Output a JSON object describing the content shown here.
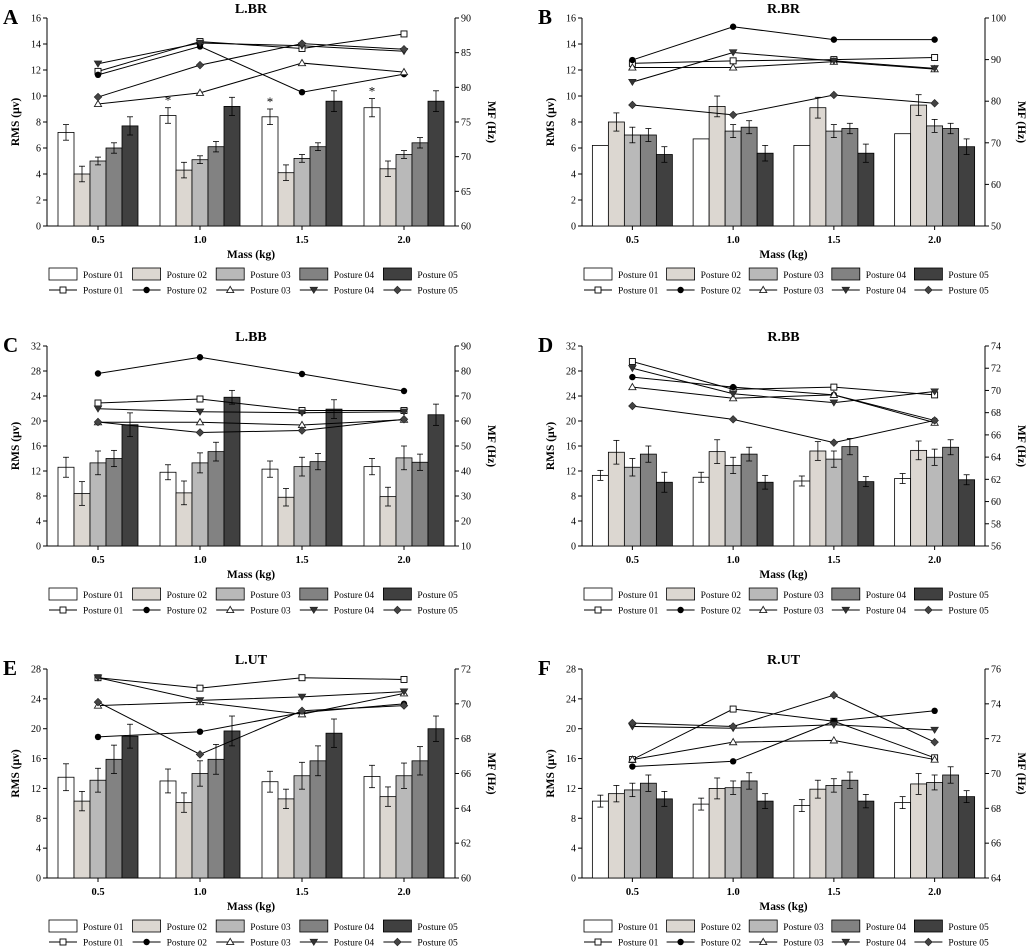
{
  "figure": {
    "legend_bar_labels": [
      "Posture 01",
      "Posture 02",
      "Posture 03",
      "Posture 04",
      "Posture 05"
    ],
    "legend_line_labels": [
      "Posture 01",
      "Posture 02",
      "Posture 03",
      "Posture 04",
      "Posture 05"
    ],
    "bar_colors": [
      "#ffffff",
      "#dcd7d1",
      "#b9b9b9",
      "#828282",
      "#404040"
    ],
    "line_markers": [
      "square-open",
      "circle-filled",
      "triangle-up-open",
      "triangle-down-filled",
      "diamond-filled"
    ]
  },
  "chart_data": [
    {
      "panel": "A",
      "type": "bar",
      "title": "L.BR",
      "xlabel": "Mass (kg)",
      "ylabel": "RMS (μv)",
      "y2label": "MF (Hz)",
      "categories": [
        "0.5",
        "1.0",
        "1.5",
        "2.0"
      ],
      "ylim": [
        0,
        16
      ],
      "yticks": [
        "0",
        "2",
        "4",
        "6",
        "8",
        "10",
        "12",
        "14",
        "16"
      ],
      "y2lim": [
        60,
        90
      ],
      "y2ticks": [
        "60",
        "65",
        "70",
        "75",
        "80",
        "85",
        "90"
      ],
      "bar_series": [
        {
          "name": "Posture 01",
          "values": [
            7.2,
            8.5,
            8.4,
            9.1
          ],
          "errors": [
            0.6,
            0.6,
            0.6,
            0.7
          ]
        },
        {
          "name": "Posture 02",
          "values": [
            4.0,
            4.3,
            4.1,
            4.4
          ],
          "errors": [
            0.6,
            0.6,
            0.6,
            0.6
          ]
        },
        {
          "name": "Posture 03",
          "values": [
            5.0,
            5.1,
            5.2,
            5.5
          ],
          "errors": [
            0.3,
            0.3,
            0.3,
            0.3
          ]
        },
        {
          "name": "Posture 04",
          "values": [
            6.0,
            6.1,
            6.1,
            6.4
          ],
          "errors": [
            0.4,
            0.4,
            0.3,
            0.4
          ]
        },
        {
          "name": "Posture 05",
          "values": [
            7.7,
            9.2,
            9.6,
            9.6
          ],
          "errors": [
            0.7,
            0.7,
            0.8,
            0.8
          ]
        }
      ],
      "line_series": [
        {
          "name": "Posture 01",
          "values": [
            82.3,
            86.6,
            85.6,
            87.7
          ]
        },
        {
          "name": "Posture 02",
          "values": [
            81.8,
            85.9,
            79.3,
            81.9
          ]
        },
        {
          "name": "Posture 03",
          "values": [
            77.6,
            79.2,
            83.5,
            82.2
          ]
        },
        {
          "name": "Posture 04",
          "values": [
            83.4,
            86.4,
            86.0,
            85.2
          ]
        },
        {
          "name": "Posture 05",
          "values": [
            78.6,
            83.2,
            86.3,
            85.5
          ]
        }
      ],
      "annotations": [
        {
          "category": "1.0",
          "text": "*"
        },
        {
          "category": "1.5",
          "text": "*"
        },
        {
          "category": "2.0",
          "text": "*"
        }
      ]
    },
    {
      "panel": "B",
      "type": "bar",
      "title": "R.BR",
      "xlabel": "Mass (kg)",
      "ylabel": "RMS (μv)",
      "y2label": "MF (Hz)",
      "categories": [
        "0.5",
        "1.0",
        "1.5",
        "2.0"
      ],
      "ylim": [
        0,
        16
      ],
      "yticks": [
        "0",
        "2",
        "4",
        "6",
        "8",
        "10",
        "12",
        "14",
        "16"
      ],
      "y2lim": [
        50,
        100
      ],
      "y2ticks": [
        "50",
        "60",
        "70",
        "80",
        "90",
        "100"
      ],
      "bar_series": [
        {
          "name": "Posture 01",
          "values": [
            6.2,
            6.7,
            6.2,
            7.1
          ],
          "errors": [
            0,
            0,
            0,
            0
          ]
        },
        {
          "name": "Posture 02",
          "values": [
            8.0,
            9.2,
            9.1,
            9.3
          ],
          "errors": [
            0.7,
            0.8,
            0.8,
            0.8
          ]
        },
        {
          "name": "Posture 03",
          "values": [
            7.0,
            7.3,
            7.3,
            7.7
          ],
          "errors": [
            0.6,
            0.5,
            0.5,
            0.5
          ]
        },
        {
          "name": "Posture 04",
          "values": [
            7.0,
            7.6,
            7.5,
            7.5
          ],
          "errors": [
            0.5,
            0.5,
            0.4,
            0.4
          ]
        },
        {
          "name": "Posture 05",
          "values": [
            5.5,
            5.6,
            5.6,
            6.1
          ],
          "errors": [
            0.6,
            0.6,
            0.7,
            0.6
          ]
        }
      ],
      "line_series": [
        {
          "name": "Posture 01",
          "values": [
            89.1,
            89.7,
            90.0,
            90.5
          ]
        },
        {
          "name": "Posture 02",
          "values": [
            89.9,
            97.9,
            94.8,
            94.8
          ]
        },
        {
          "name": "Posture 03",
          "values": [
            88.1,
            88.1,
            89.5,
            87.7
          ]
        },
        {
          "name": "Posture 04",
          "values": [
            84.6,
            91.7,
            89.7,
            87.9
          ]
        },
        {
          "name": "Posture 05",
          "values": [
            79.1,
            76.7,
            81.5,
            79.5
          ]
        }
      ],
      "annotations": []
    },
    {
      "panel": "C",
      "type": "bar",
      "title": "L.BB",
      "xlabel": "Mass (kg)",
      "ylabel": "RMS (μv)",
      "y2label": "MF (Hz)",
      "categories": [
        "0.5",
        "1.0",
        "1.5",
        "2.0"
      ],
      "ylim": [
        0,
        32
      ],
      "yticks": [
        "0",
        "4",
        "8",
        "12",
        "16",
        "20",
        "24",
        "28",
        "32"
      ],
      "y2lim": [
        10,
        90
      ],
      "y2ticks": [
        "10",
        "20",
        "30",
        "40",
        "50",
        "60",
        "70",
        "80",
        "90"
      ],
      "bar_series": [
        {
          "name": "Posture 01",
          "values": [
            12.6,
            11.8,
            12.3,
            12.7
          ],
          "errors": [
            1.6,
            1.2,
            1.3,
            1.3
          ]
        },
        {
          "name": "Posture 02",
          "values": [
            8.4,
            8.5,
            7.8,
            7.9
          ],
          "errors": [
            1.9,
            1.9,
            1.4,
            1.5
          ]
        },
        {
          "name": "Posture 03",
          "values": [
            13.3,
            13.3,
            12.7,
            14.1
          ],
          "errors": [
            1.9,
            1.6,
            1.5,
            1.9
          ]
        },
        {
          "name": "Posture 04",
          "values": [
            14.0,
            15.1,
            13.5,
            13.4
          ],
          "errors": [
            1.3,
            1.5,
            1.3,
            1.3
          ]
        },
        {
          "name": "Posture 05",
          "values": [
            19.4,
            23.8,
            21.9,
            21.0
          ],
          "errors": [
            1.9,
            1.1,
            1.5,
            1.7
          ]
        }
      ],
      "line_series": [
        {
          "name": "Posture 01",
          "values": [
            67.2,
            68.8,
            64.2,
            64.2
          ]
        },
        {
          "name": "Posture 02",
          "values": [
            79.0,
            85.5,
            78.8,
            72.0
          ]
        },
        {
          "name": "Posture 03",
          "values": [
            59.5,
            59.5,
            58.4,
            60.5
          ]
        },
        {
          "name": "Posture 04",
          "values": [
            64.9,
            63.7,
            63.3,
            63.7
          ]
        },
        {
          "name": "Posture 05",
          "values": [
            59.6,
            55.4,
            56.2,
            60.7
          ]
        }
      ],
      "annotations": []
    },
    {
      "panel": "D",
      "type": "bar",
      "title": "R.BB",
      "xlabel": "Mass (kg)",
      "ylabel": "RMS (μv)",
      "y2label": "MF (Hz)",
      "categories": [
        "0.5",
        "1.0",
        "1.5",
        "2.0"
      ],
      "ylim": [
        0,
        32
      ],
      "yticks": [
        "0",
        "4",
        "8",
        "12",
        "16",
        "20",
        "24",
        "28",
        "32"
      ],
      "y2lim": [
        56,
        74
      ],
      "y2ticks": [
        "56",
        "58",
        "60",
        "62",
        "64",
        "66",
        "68",
        "70",
        "72",
        "74"
      ],
      "bar_series": [
        {
          "name": "Posture 01",
          "values": [
            11.3,
            11.0,
            10.4,
            10.8
          ],
          "errors": [
            0.8,
            0.8,
            0.8,
            0.8
          ]
        },
        {
          "name": "Posture 02",
          "values": [
            15.0,
            15.1,
            15.2,
            15.3
          ],
          "errors": [
            1.9,
            1.9,
            1.5,
            1.5
          ]
        },
        {
          "name": "Posture 03",
          "values": [
            12.6,
            12.9,
            13.9,
            14.2
          ],
          "errors": [
            1.4,
            1.3,
            1.3,
            1.3
          ]
        },
        {
          "name": "Posture 04",
          "values": [
            14.7,
            14.7,
            15.9,
            15.8
          ],
          "errors": [
            1.3,
            1.1,
            1.3,
            1.2
          ]
        },
        {
          "name": "Posture 05",
          "values": [
            10.2,
            10.2,
            10.3,
            10.6
          ],
          "errors": [
            1.6,
            1.1,
            0.8,
            0.8
          ]
        }
      ],
      "line_series": [
        {
          "name": "Posture 01",
          "values": [
            72.6,
            70.1,
            70.3,
            69.6
          ]
        },
        {
          "name": "Posture 02",
          "values": [
            71.2,
            70.3,
            69.6,
            67.3
          ]
        },
        {
          "name": "Posture 03",
          "values": [
            70.3,
            69.3,
            69.6,
            67.1
          ]
        },
        {
          "name": "Posture 04",
          "values": [
            72.0,
            69.7,
            68.9,
            69.9
          ]
        },
        {
          "name": "Posture 05",
          "values": [
            68.6,
            67.4,
            65.3,
            67.3
          ]
        }
      ],
      "annotations": []
    },
    {
      "panel": "E",
      "type": "bar",
      "title": "L.UT",
      "xlabel": "Mass (kg)",
      "ylabel": "RMS (μv)",
      "y2label": "MF (Hz)",
      "categories": [
        "0.5",
        "1.0",
        "1.5",
        "2.0"
      ],
      "ylim": [
        0,
        28
      ],
      "yticks": [
        "0",
        "4",
        "8",
        "12",
        "16",
        "20",
        "24",
        "28"
      ],
      "y2lim": [
        60,
        72
      ],
      "y2ticks": [
        "60",
        "62",
        "64",
        "66",
        "68",
        "70",
        "72"
      ],
      "bar_series": [
        {
          "name": "Posture 01",
          "values": [
            13.5,
            13.0,
            12.9,
            13.6
          ],
          "errors": [
            1.8,
            1.6,
            1.4,
            1.5
          ]
        },
        {
          "name": "Posture 02",
          "values": [
            10.3,
            10.1,
            10.6,
            10.9
          ],
          "errors": [
            1.3,
            1.3,
            1.3,
            1.3
          ]
        },
        {
          "name": "Posture 03",
          "values": [
            13.1,
            14.0,
            13.7,
            13.7
          ],
          "errors": [
            1.6,
            1.7,
            1.8,
            1.7
          ]
        },
        {
          "name": "Posture 04",
          "values": [
            15.9,
            15.9,
            15.7,
            15.7
          ],
          "errors": [
            1.9,
            2.0,
            2.0,
            1.9
          ]
        },
        {
          "name": "Posture 05",
          "values": [
            19.0,
            19.7,
            19.4,
            20.0
          ],
          "errors": [
            1.6,
            2.0,
            1.9,
            1.7
          ]
        }
      ],
      "line_series": [
        {
          "name": "Posture 01",
          "values": [
            71.5,
            70.9,
            71.5,
            71.4
          ]
        },
        {
          "name": "Posture 02",
          "values": [
            68.1,
            68.4,
            69.5,
            70.0
          ]
        },
        {
          "name": "Posture 03",
          "values": [
            69.9,
            70.1,
            69.4,
            70.6
          ]
        },
        {
          "name": "Posture 04",
          "values": [
            71.5,
            70.2,
            70.4,
            70.7
          ]
        },
        {
          "name": "Posture 05",
          "values": [
            70.1,
            67.1,
            69.6,
            69.9
          ]
        }
      ],
      "annotations": []
    },
    {
      "panel": "F",
      "type": "bar",
      "title": "R.UT",
      "xlabel": "Mass (kg)",
      "ylabel": "RMS (μv)",
      "y2label": "MF (Hz)",
      "categories": [
        "0.5",
        "1.0",
        "1.5",
        "2.0"
      ],
      "ylim": [
        0,
        28
      ],
      "yticks": [
        "0",
        "4",
        "8",
        "12",
        "16",
        "20",
        "24",
        "28"
      ],
      "y2lim": [
        64,
        76
      ],
      "y2ticks": [
        "64",
        "66",
        "68",
        "70",
        "72",
        "74",
        "76"
      ],
      "bar_series": [
        {
          "name": "Posture 01",
          "values": [
            10.3,
            9.9,
            9.7,
            10.1
          ],
          "errors": [
            0.8,
            0.8,
            0.8,
            0.8
          ]
        },
        {
          "name": "Posture 02",
          "values": [
            11.3,
            12.0,
            11.9,
            12.6
          ],
          "errors": [
            1.1,
            1.4,
            1.2,
            1.4
          ]
        },
        {
          "name": "Posture 03",
          "values": [
            11.8,
            12.1,
            12.4,
            12.8
          ],
          "errors": [
            0.9,
            0.9,
            0.9,
            1.0
          ]
        },
        {
          "name": "Posture 04",
          "values": [
            12.7,
            13.0,
            13.1,
            13.8
          ],
          "errors": [
            1.1,
            1.1,
            1.1,
            1.1
          ]
        },
        {
          "name": "Posture 05",
          "values": [
            10.6,
            10.3,
            10.3,
            10.9
          ],
          "errors": [
            1.0,
            1.0,
            0.9,
            0.8
          ]
        }
      ],
      "line_series": [
        {
          "name": "Posture 01",
          "values": [
            70.8,
            73.7,
            73.0,
            70.9
          ]
        },
        {
          "name": "Posture 02",
          "values": [
            70.4,
            70.7,
            73.0,
            73.6
          ]
        },
        {
          "name": "Posture 03",
          "values": [
            70.8,
            71.8,
            71.9,
            70.8
          ]
        },
        {
          "name": "Posture 04",
          "values": [
            72.7,
            72.6,
            72.8,
            72.5
          ]
        },
        {
          "name": "Posture 05",
          "values": [
            72.9,
            72.7,
            74.5,
            71.8
          ]
        }
      ],
      "annotations": []
    }
  ]
}
